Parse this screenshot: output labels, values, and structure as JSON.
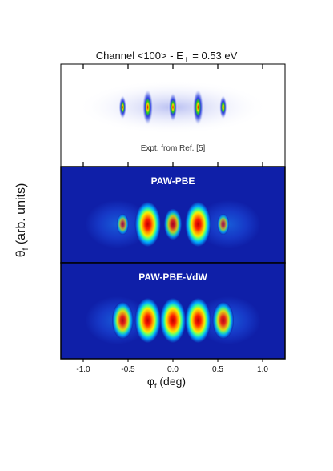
{
  "chart_data": {
    "type": "heatmap",
    "title_prefix": "Channel <100> - E",
    "title_sub": "⊥",
    "title_suffix": " = 0.53 eV",
    "ylabel_symbol": "θ",
    "ylabel_sub": "f",
    "ylabel_suffix": " (arb. units)",
    "xlabel_symbol": "φ",
    "xlabel_sub": "f",
    "xlabel_suffix": " (deg)",
    "xticks": [
      "-1.0",
      "-0.5",
      "0.0",
      "0.5",
      "1.0"
    ],
    "xtick_values": [
      -1.0,
      -0.5,
      0.0,
      0.5,
      1.0
    ],
    "xlim": [
      -1.25,
      1.25
    ],
    "panels": [
      {
        "name": "experiment",
        "title": "",
        "annotation": "Expt. from Ref. [5]",
        "style": "experiment",
        "peaks": [
          {
            "x": -0.56,
            "intensity": 0.45
          },
          {
            "x": -0.28,
            "intensity": 1.0
          },
          {
            "x": 0.0,
            "intensity": 0.7
          },
          {
            "x": 0.28,
            "intensity": 1.0
          },
          {
            "x": 0.56,
            "intensity": 0.45
          }
        ]
      },
      {
        "name": "paw-pbe",
        "title": "PAW-PBE",
        "annotation": "",
        "style": "simulation",
        "peaks": [
          {
            "x": -0.56,
            "intensity": 0.22
          },
          {
            "x": -0.28,
            "intensity": 1.0
          },
          {
            "x": 0.0,
            "intensity": 0.55
          },
          {
            "x": 0.28,
            "intensity": 1.0
          },
          {
            "x": 0.56,
            "intensity": 0.22
          }
        ]
      },
      {
        "name": "paw-pbe-vdw",
        "title": "PAW-PBE-VdW",
        "annotation": "",
        "style": "simulation",
        "peaks": [
          {
            "x": -0.56,
            "intensity": 0.75
          },
          {
            "x": -0.28,
            "intensity": 1.0
          },
          {
            "x": 0.0,
            "intensity": 1.0
          },
          {
            "x": 0.28,
            "intensity": 1.0
          },
          {
            "x": 0.56,
            "intensity": 0.75
          }
        ]
      }
    ],
    "colors": {
      "background": "#0f1fa8",
      "frame": "#000000",
      "experiment_background": "#ffffff"
    }
  }
}
